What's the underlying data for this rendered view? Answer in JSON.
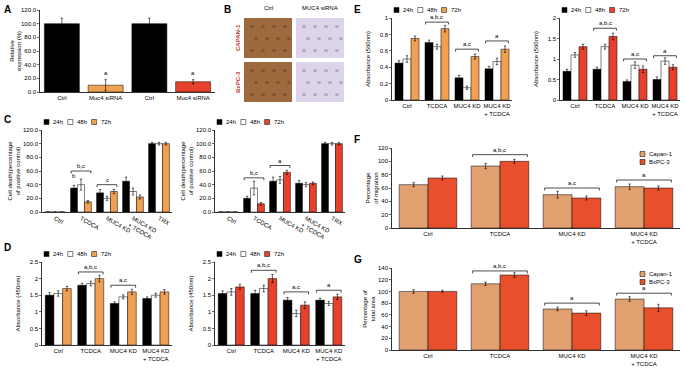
{
  "chart_data": [
    {
      "panel": "A",
      "type": "bar",
      "y_label": "Relative expression (%)",
      "categories": [
        "Ctrl",
        "Muc4 siRNA",
        "Ctrl",
        "Muc4 siRNA"
      ],
      "values": [
        100,
        10,
        100,
        15
      ],
      "errors": [
        8,
        8,
        8,
        3
      ],
      "colors": [
        "#000000",
        "#f0a050",
        "#000000",
        "#e8412b"
      ],
      "ylim": [
        0,
        120
      ],
      "yticks": [
        {
          "value": 0,
          "label": "0.0"
        },
        {
          "value": 20,
          "label": "20.0"
        },
        {
          "value": 40,
          "label": "40.0"
        },
        {
          "value": 60,
          "label": "60.0"
        },
        {
          "value": 80,
          "label": "80.0"
        },
        {
          "value": 100,
          "label": "100.0"
        },
        {
          "value": 120,
          "label": "120.0"
        }
      ],
      "annotations": [
        {
          "text": "a",
          "x0": 1,
          "x1": 1,
          "y": 20
        },
        {
          "text": "a",
          "x0": 3,
          "x1": 3,
          "y": 20
        }
      ]
    },
    {
      "panel": "C",
      "type": "bar",
      "y_label": "Cell death(percentage of positive control)",
      "categories": [
        "Ctrl",
        "TCDCA",
        "MUC4 KD",
        "MUC4 KD + TCDCA",
        "TRX"
      ],
      "series": [
        {
          "name": "24h",
          "color": "#000000",
          "values": [
            0,
            35,
            28,
            45,
            100
          ],
          "errors": [
            0,
            4,
            5,
            6,
            2
          ]
        },
        {
          "name": "48h",
          "color": "#ffffff",
          "values": [
            0,
            40,
            20,
            30,
            100
          ],
          "errors": [
            0,
            8,
            3,
            5,
            2
          ]
        },
        {
          "name": "72h",
          "color": "#f0a050",
          "values": [
            0,
            15,
            30,
            22,
            100
          ],
          "errors": [
            0,
            2,
            3,
            3,
            2
          ]
        }
      ],
      "ylim": [
        0,
        120
      ],
      "yticks": [
        {
          "value": 0,
          "label": "0.0"
        },
        {
          "value": 20,
          "label": "20.0"
        },
        {
          "value": 40,
          "label": "40.0"
        },
        {
          "value": 60,
          "label": "60.0"
        },
        {
          "value": 80,
          "label": "80.0"
        },
        {
          "value": 100,
          "label": "100.0"
        },
        {
          "value": 120,
          "label": "120.0"
        }
      ],
      "legend": "top",
      "annotations": [
        {
          "text": "b",
          "x0": 1,
          "x1": 1,
          "series": 0,
          "y": 45
        },
        {
          "text": "b,c",
          "x0": 1,
          "x1": 1,
          "y": 60
        },
        {
          "text": "c",
          "x0": 2,
          "x1": 2,
          "y": 40
        }
      ]
    },
    {
      "type": "bar",
      "y_label": "Cell death(percentage of positive control)",
      "categories": [
        "Ctrl",
        "TCDCA",
        "MUC4 KD",
        "MUC4 KD + TCDCA",
        "TRX"
      ],
      "series": [
        {
          "name": "24h",
          "color": "#000000",
          "values": [
            0,
            20,
            45,
            42,
            100
          ],
          "errors": [
            0,
            3,
            6,
            4,
            2
          ]
        },
        {
          "name": "48h",
          "color": "#ffffff",
          "values": [
            0,
            35,
            47,
            40,
            100
          ],
          "errors": [
            0,
            10,
            5,
            3,
            2
          ]
        },
        {
          "name": "72h",
          "color": "#e8412b",
          "values": [
            0,
            12,
            58,
            42,
            100
          ],
          "errors": [
            0,
            2,
            3,
            2,
            2
          ]
        }
      ],
      "ylim": [
        0,
        120
      ],
      "yticks": [
        {
          "value": 0,
          "label": "0.0"
        },
        {
          "value": 20,
          "label": "20.0"
        },
        {
          "value": 40,
          "label": "40.0"
        },
        {
          "value": 60,
          "label": "60.0"
        },
        {
          "value": 80,
          "label": "80.0"
        },
        {
          "value": 100,
          "label": "100.0"
        },
        {
          "value": 120,
          "label": "120.0"
        }
      ],
      "legend": "top",
      "annotations": [
        {
          "text": "b,c",
          "x0": 1,
          "x1": 1,
          "y": 50
        },
        {
          "text": "a",
          "x0": 2,
          "x1": 2,
          "y": 68
        }
      ]
    },
    {
      "panel": "D",
      "type": "bar",
      "y_label": "Absorbance (450nm)",
      "categories": [
        "Ctrl",
        "TCDCA",
        "MUC4 KD",
        "MUC4 KD + TCDCA"
      ],
      "series": [
        {
          "name": "24h",
          "color": "#000000",
          "values": [
            1.5,
            1.8,
            1.25,
            1.4
          ],
          "errors": [
            0.08,
            0.06,
            0.05,
            0.05
          ]
        },
        {
          "name": "48h",
          "color": "#ffffff",
          "values": [
            1.55,
            1.85,
            1.45,
            1.5
          ],
          "errors": [
            0.08,
            0.07,
            0.06,
            0.06
          ]
        },
        {
          "name": "72h",
          "color": "#f0a050",
          "values": [
            1.7,
            2.0,
            1.6,
            1.6
          ],
          "errors": [
            0.07,
            0.1,
            0.08,
            0.07
          ]
        }
      ],
      "ylim": [
        0,
        2.5
      ],
      "yticks": [
        0,
        0.5,
        1,
        1.5,
        2,
        2.5
      ],
      "legend": "top",
      "annotations": [
        {
          "text": "a,b,c",
          "x0": 1,
          "x1": 1,
          "y": 2.2
        },
        {
          "text": "a,c",
          "x0": 2,
          "x1": 2,
          "y": 1.8
        }
      ]
    },
    {
      "type": "bar",
      "y_label": "Absorbance (450nm)",
      "categories": [
        "Ctrl",
        "TCDCA",
        "MUC4 KD",
        "MUC4 KD + TCDCA"
      ],
      "series": [
        {
          "name": "24h",
          "color": "#000000",
          "values": [
            1.55,
            1.55,
            1.35,
            1.35
          ],
          "errors": [
            0.08,
            0.1,
            0.08,
            0.06
          ]
        },
        {
          "name": "48h",
          "color": "#ffffff",
          "values": [
            1.6,
            1.7,
            0.95,
            1.25
          ],
          "errors": [
            0.1,
            0.1,
            0.1,
            0.06
          ]
        },
        {
          "name": "72h",
          "color": "#e8412b",
          "values": [
            1.75,
            2.0,
            1.2,
            1.45
          ],
          "errors": [
            0.08,
            0.12,
            0.1,
            0.08
          ]
        }
      ],
      "ylim": [
        0,
        2.5
      ],
      "yticks": [
        0,
        0.5,
        1,
        1.5,
        2,
        2.5
      ],
      "legend": "top",
      "annotations": [
        {
          "text": "a,b,c",
          "x0": 1,
          "x1": 1,
          "y": 2.25
        },
        {
          "text": "a,c",
          "x0": 2,
          "x1": 2,
          "y": 1.6
        },
        {
          "text": "a",
          "x0": 3,
          "x1": 3,
          "y": 1.65
        }
      ]
    },
    {
      "panel": "E",
      "type": "bar",
      "y_label": "Absorbance (560nm)",
      "categories": [
        "Ctrl",
        "TCDCA",
        "MUC4 KD",
        "MUC4 KD + TCDCA"
      ],
      "series": [
        {
          "name": "24h",
          "color": "#000000",
          "values": [
            0.45,
            0.7,
            0.27,
            0.38
          ],
          "errors": [
            0.03,
            0.03,
            0.03,
            0.03
          ]
        },
        {
          "name": "48h",
          "color": "#ffffff",
          "values": [
            0.5,
            0.65,
            0.15,
            0.47
          ],
          "errors": [
            0.04,
            0.03,
            0.02,
            0.04
          ]
        },
        {
          "name": "72h",
          "color": "#f0a050",
          "values": [
            0.75,
            0.87,
            0.53,
            0.62
          ],
          "errors": [
            0.03,
            0.04,
            0.03,
            0.04
          ]
        }
      ],
      "ylim": [
        0,
        1
      ],
      "yticks": [
        0,
        0.2,
        0.4,
        0.6,
        0.8,
        1
      ],
      "legend": "top",
      "annotations": [
        {
          "text": "a,b,c",
          "x0": 1,
          "x1": 1,
          "y": 0.95
        },
        {
          "text": "a,c",
          "x0": 2,
          "x1": 2,
          "y": 0.62
        },
        {
          "text": "a",
          "x0": 3,
          "x1": 3,
          "y": 0.72
        }
      ]
    },
    {
      "type": "bar",
      "y_label": "Absorbance (560nm)",
      "categories": [
        "Ctrl",
        "TCDCA",
        "MUC4 KD",
        "MUC4 KD + TCDCA"
      ],
      "series": [
        {
          "name": "24h",
          "color": "#000000",
          "values": [
            0.7,
            0.75,
            0.45,
            0.5
          ],
          "errors": [
            0.05,
            0.05,
            0.04,
            0.06
          ]
        },
        {
          "name": "48h",
          "color": "#ffffff",
          "values": [
            1.1,
            1.3,
            0.85,
            0.95
          ],
          "errors": [
            0.06,
            0.06,
            0.08,
            0.08
          ]
        },
        {
          "name": "72h",
          "color": "#e8412b",
          "values": [
            1.3,
            1.55,
            0.75,
            0.8
          ],
          "errors": [
            0.06,
            0.08,
            0.08,
            0.06
          ]
        }
      ],
      "ylim": [
        0,
        2
      ],
      "yticks": [
        0,
        0.5,
        1,
        1.5,
        2
      ],
      "legend": "top",
      "annotations": [
        {
          "text": "a,b,c",
          "x0": 1,
          "x1": 1,
          "y": 1.75
        },
        {
          "text": "a,c",
          "x0": 2,
          "x1": 2,
          "y": 1.0
        },
        {
          "text": "a",
          "x0": 3,
          "x1": 3,
          "y": 1.08
        }
      ]
    },
    {
      "panel": "F",
      "type": "bar",
      "y_label": "Percentage of migration",
      "categories": [
        "Ctrl",
        "TCDCA",
        "MUC4 KD",
        "MUC4 KD + TCDCA"
      ],
      "series": [
        {
          "name": "Capan-1",
          "color": "#e0a070",
          "values": [
            65,
            93,
            50,
            62
          ],
          "errors": [
            3,
            4,
            5,
            4
          ]
        },
        {
          "name": "BxPC-3",
          "color": "#e8502d",
          "values": [
            75,
            100,
            45,
            60
          ],
          "errors": [
            3,
            3,
            3,
            3
          ]
        }
      ],
      "ylim": [
        0,
        120
      ],
      "yticks": [
        0,
        20,
        40,
        60,
        80,
        100,
        120
      ],
      "legend": "top right",
      "annotations": [
        {
          "text": "a,b,c",
          "x0": 1,
          "x1": 1,
          "y": 110
        },
        {
          "text": "a,c",
          "x0": 2,
          "x1": 2,
          "y": 60
        },
        {
          "text": "a",
          "x0": 3,
          "x1": 3,
          "y": 72
        }
      ]
    },
    {
      "panel": "G",
      "type": "bar",
      "y_label": "Percentage of total area",
      "categories": [
        "Ctrl",
        "TCDCA",
        "MUC4 KD",
        "MUC4 KD + TCDCA"
      ],
      "series": [
        {
          "name": "Capan-1",
          "color": "#e0a070",
          "values": [
            100,
            113,
            70,
            87
          ],
          "errors": [
            3,
            3,
            3,
            4
          ]
        },
        {
          "name": "BxPC-3",
          "color": "#e8502d",
          "values": [
            100,
            128,
            63,
            72
          ],
          "errors": [
            2,
            4,
            4,
            6
          ]
        }
      ],
      "ylim": [
        0,
        140
      ],
      "yticks": [
        0,
        20,
        40,
        60,
        80,
        100,
        120,
        140
      ],
      "legend": "top right",
      "annotations": [
        {
          "text": "a,b,c",
          "x0": 1,
          "x1": 1,
          "y": 135
        },
        {
          "text": "a",
          "x0": 2,
          "x1": 2,
          "y": 80
        },
        {
          "text": "a",
          "x0": 3,
          "x1": 3,
          "y": 97
        }
      ]
    }
  ],
  "image_panel": {
    "panel": "B",
    "columns": [
      "Ctrl",
      "MUC4 siRNA"
    ],
    "rows": [
      "CAPAN-1",
      "BxPC-3"
    ]
  }
}
